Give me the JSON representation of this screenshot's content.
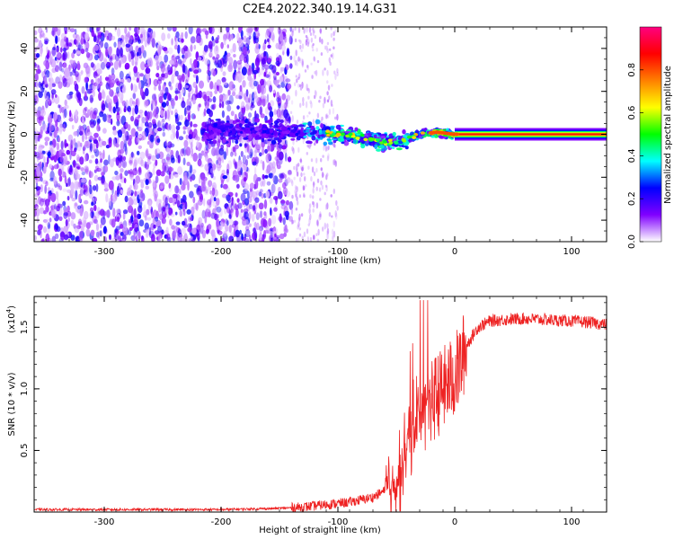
{
  "title": "C2E4.2022.340.19.14.G31",
  "chart_data": [
    {
      "type": "heatmap",
      "xlabel": "Height of straight line (km)",
      "ylabel": "Frequency (Hz)",
      "xlim": [
        -360,
        130
      ],
      "ylim": [
        -50,
        50
      ],
      "xticks": [
        -300,
        -200,
        -100,
        0,
        100
      ],
      "yticks": [
        -40,
        -20,
        0,
        20,
        40
      ],
      "colorbar": {
        "label": "Normalized spectral amplitude",
        "range": [
          0,
          1
        ],
        "ticks": [
          "0.0",
          "0.2",
          "0.4",
          "0.6",
          "0.8"
        ],
        "colors": [
          "#ffffff",
          "#8000ff",
          "#0000ff",
          "#00ffff",
          "#00ff00",
          "#ffff00",
          "#ff8000",
          "#ff0000",
          "#ff0080"
        ]
      },
      "noise_region": {
        "x_range": [
          -360,
          -140
        ],
        "freq_range": [
          -50,
          50
        ],
        "amplitude": 0.12
      },
      "sparse_region": {
        "x_range": [
          -140,
          -100
        ],
        "amplitude": 0.05
      },
      "signal_ridge": [
        {
          "x": -210,
          "f": 2
        },
        {
          "x": -150,
          "f": 1
        },
        {
          "x": -120,
          "f": 1
        },
        {
          "x": -100,
          "f": 0
        },
        {
          "x": -80,
          "f": -1
        },
        {
          "x": -60,
          "f": -4
        },
        {
          "x": -45,
          "f": -3
        },
        {
          "x": -30,
          "f": 0
        },
        {
          "x": -15,
          "f": 1
        },
        {
          "x": 0,
          "f": 0
        },
        {
          "x": 130,
          "f": 0
        }
      ],
      "carrier_line": {
        "x_range": [
          0,
          130
        ],
        "frequency": 0,
        "amplitude": 1.0
      }
    },
    {
      "type": "line",
      "xlabel": "Height of straight line (km)",
      "ylabel": "SNR (10 * v/v)",
      "scale_label": "(x10",
      "scale_exponent": "4",
      "scale_close": ")",
      "xlim": [
        -360,
        130
      ],
      "ylim": [
        0,
        1.75
      ],
      "xticks": [
        -300,
        -200,
        -100,
        0,
        100
      ],
      "yticks": [
        "0.5",
        "1.0",
        "1.5"
      ],
      "line_color": "#ee2222",
      "series": [
        {
          "x": [
            -360,
            -300,
            -200,
            -150,
            -130,
            -110,
            -90,
            -70,
            -55,
            -45,
            -40,
            -35,
            -30,
            -25,
            -20,
            -15,
            -10,
            -5,
            0,
            5,
            10,
            20,
            30,
            40,
            60,
            80,
            100,
            115,
            130
          ],
          "y": [
            0.02,
            0.02,
            0.02,
            0.03,
            0.04,
            0.06,
            0.08,
            0.12,
            0.2,
            0.35,
            0.55,
            0.7,
            0.8,
            0.85,
            0.9,
            0.95,
            1.0,
            1.05,
            1.1,
            1.2,
            1.35,
            1.5,
            1.55,
            1.56,
            1.57,
            1.56,
            1.55,
            1.54,
            1.52
          ]
        }
      ]
    }
  ]
}
